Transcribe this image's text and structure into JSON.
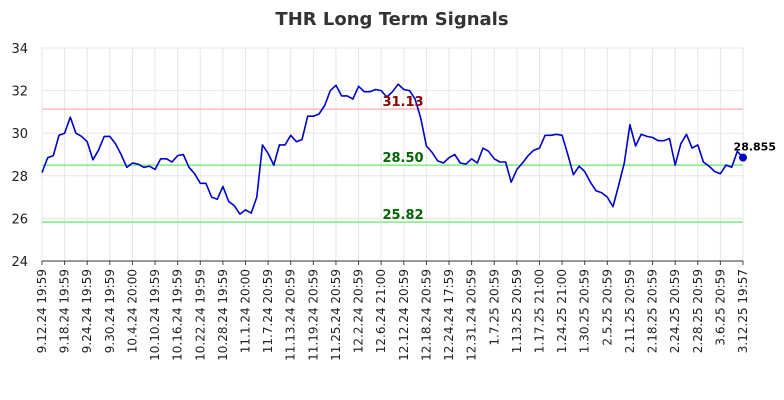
{
  "chart_data": {
    "type": "line",
    "title": "THR Long Term Signals",
    "xlabel": "",
    "ylabel": "",
    "ylim": [
      24,
      34
    ],
    "yticks": [
      24,
      26,
      28,
      30,
      32,
      34
    ],
    "grid": true,
    "x_tick_labels": [
      "9.12.24 19:59",
      "9.18.24 19:59",
      "9.24.24 19:59",
      "9.30.24 19:59",
      "10.4.24 20:00",
      "10.10.24 19:59",
      "10.16.24 19:59",
      "10.22.24 19:59",
      "10.28.24 19:59",
      "11.1.24 20:00",
      "11.7.24 20:59",
      "11.13.24 20:59",
      "11.19.24 20:59",
      "11.25.24 20:59",
      "12.2.24 20:59",
      "12.6.24 21:00",
      "12.12.24 20:59",
      "12.18.24 20:59",
      "12.24.24 17:59",
      "12.31.24 20:59",
      "1.7.25 20:59",
      "1.13.25 20:59",
      "1.17.25 21:00",
      "1.24.25 21:00",
      "1.30.25 20:59",
      "2.5.25 20:59",
      "2.11.25 20:59",
      "2.18.25 20:59",
      "2.24.25 20:59",
      "2.28.25 20:59",
      "3.6.25 20:59",
      "3.12.25 19:57"
    ],
    "series": [
      {
        "color": "#0000cc",
        "values": [
          28.15,
          28.85,
          28.95,
          29.9,
          30.0,
          30.75,
          30.0,
          29.85,
          29.6,
          28.75,
          29.2,
          29.85,
          29.85,
          29.5,
          29.0,
          28.4,
          28.6,
          28.55,
          28.4,
          28.45,
          28.3,
          28.8,
          28.8,
          28.65,
          28.95,
          29.0,
          28.4,
          28.1,
          27.65,
          27.65,
          27.0,
          26.9,
          27.5,
          26.8,
          26.6,
          26.2,
          26.4,
          26.25,
          27.0,
          29.45,
          29.05,
          28.5,
          29.45,
          29.45,
          29.9,
          29.6,
          29.7,
          30.8,
          30.8,
          30.9,
          31.3,
          32.0,
          32.25,
          31.75,
          31.75,
          31.6,
          32.2,
          31.95,
          31.95,
          32.05,
          32.0,
          31.7,
          31.95,
          32.3,
          32.05,
          32.0,
          31.6,
          30.7,
          29.4,
          29.1,
          28.7,
          28.6,
          28.85,
          29.0,
          28.6,
          28.55,
          28.8,
          28.6,
          29.3,
          29.15,
          28.8,
          28.65,
          28.65,
          27.7,
          28.3,
          28.6,
          28.95,
          29.2,
          29.3,
          29.9,
          29.9,
          29.95,
          29.9,
          29.0,
          28.05,
          28.45,
          28.2,
          27.7,
          27.3,
          27.2,
          27.0,
          26.55,
          27.55,
          28.6,
          30.4,
          29.4,
          29.95,
          29.85,
          29.8,
          29.65,
          29.65,
          29.75,
          28.5,
          29.5,
          29.95,
          29.3,
          29.45,
          28.65,
          28.45,
          28.2,
          28.1,
          28.5,
          28.4,
          29.15,
          28.855
        ]
      }
    ],
    "levels": [
      {
        "value": 31.13,
        "label": "31.13",
        "line_color": "#ffbbbb",
        "label_color": "#8b0000"
      },
      {
        "value": 28.5,
        "label": "28.50",
        "line_color": "#88ee88",
        "label_color": "#006400"
      },
      {
        "value": 25.82,
        "label": "25.82",
        "line_color": "#88ee88",
        "label_color": "#006400"
      }
    ],
    "last_value_label": "28.855"
  }
}
